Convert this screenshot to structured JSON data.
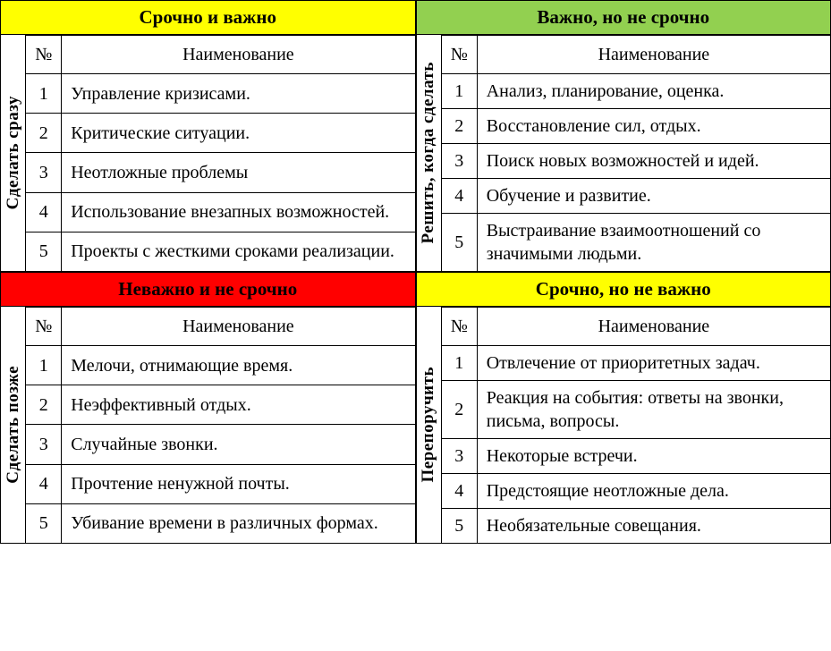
{
  "colors": {
    "yellow": "#ffff00",
    "green": "#92d050",
    "red": "#ff0000",
    "border": "#000000",
    "text": "#000000",
    "text_on_red": "#000000",
    "background": "#ffffff"
  },
  "columns": {
    "num": "№",
    "name": "Наименование"
  },
  "quadrants": [
    {
      "key": "q1",
      "header": "Срочно и важно",
      "header_bg": "#ffff00",
      "header_color": "#000000",
      "side_label": "Сделать сразу",
      "rows": [
        {
          "n": "1",
          "name": "Управление кризисами."
        },
        {
          "n": "2",
          "name": "Критические ситуации."
        },
        {
          "n": "3",
          "name": "Неотложные проблемы"
        },
        {
          "n": "4",
          "name": "Использование внезапных возможностей."
        },
        {
          "n": "5",
          "name": "Проекты с жесткими сроками реализации."
        }
      ]
    },
    {
      "key": "q2",
      "header": "Важно, но не срочно",
      "header_bg": "#92d050",
      "header_color": "#000000",
      "side_label": "Решить, когда сделать",
      "rows": [
        {
          "n": "1",
          "name": "Анализ, планирование, оценка."
        },
        {
          "n": "2",
          "name": "Восстановление сил, отдых."
        },
        {
          "n": "3",
          "name": "Поиск новых возможностей и идей."
        },
        {
          "n": "4",
          "name": "Обучение и развитие."
        },
        {
          "n": "5",
          "name": "Выстраивание взаимоотношений со значимыми людьми."
        }
      ]
    },
    {
      "key": "q3",
      "header": "Неважно и не срочно",
      "header_bg": "#ff0000",
      "header_color": "#000000",
      "side_label": "Сделать позже",
      "rows": [
        {
          "n": "1",
          "name": "Мелочи, отнимающие время."
        },
        {
          "n": "2",
          "name": "Неэффективный отдых."
        },
        {
          "n": "3",
          "name": "Случайные звонки."
        },
        {
          "n": "4",
          "name": "Прочтение ненужной почты."
        },
        {
          "n": "5",
          "name": "Убивание времени в различных формах."
        }
      ]
    },
    {
      "key": "q4",
      "header": "Срочно, но не важно",
      "header_bg": "#ffff00",
      "header_color": "#000000",
      "side_label": "Перепоручить",
      "rows": [
        {
          "n": "1",
          "name": "Отвлечение от приоритетных задач."
        },
        {
          "n": "2",
          "name": "Реакция на события: ответы на звонки, письма, вопросы."
        },
        {
          "n": "3",
          "name": "Некоторые встречи."
        },
        {
          "n": "4",
          "name": "Предстоящие неотложные дела."
        },
        {
          "n": "5",
          "name": "Необязательные совещания."
        }
      ]
    }
  ]
}
